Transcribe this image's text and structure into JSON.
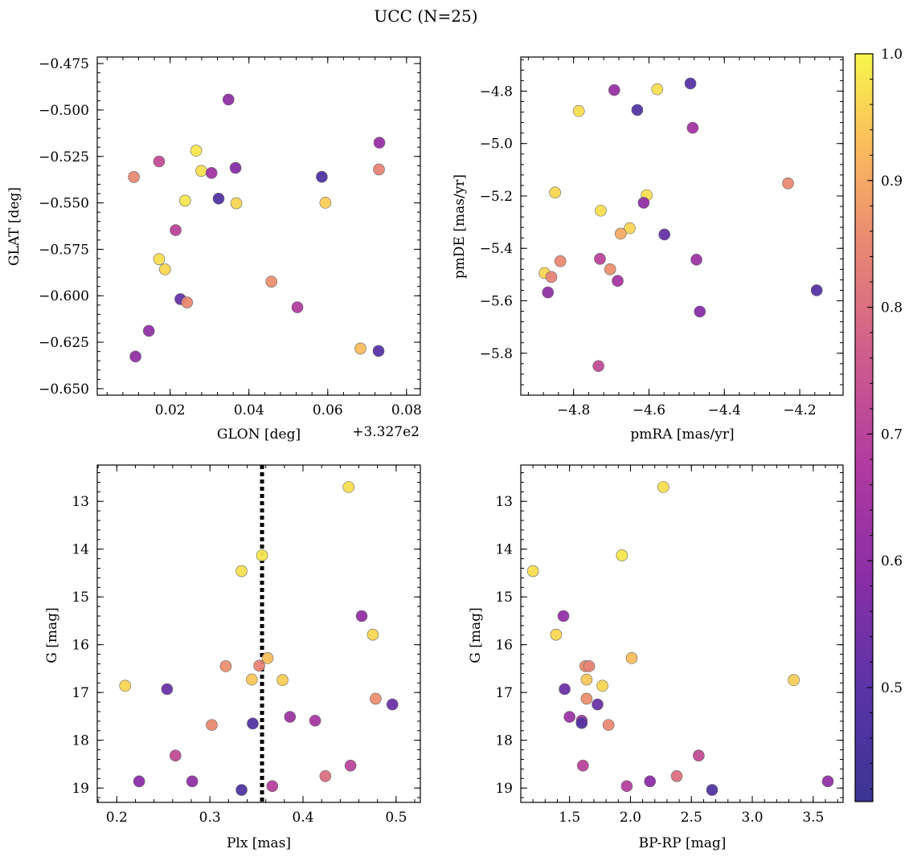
{
  "title": "UCC (N=25)",
  "colors": {
    "colormap": "plasma",
    "point_edge": "#666666",
    "vline": "#000000",
    "background": "#ffffff"
  },
  "colorbar": {
    "range": [
      0.41,
      1.0
    ],
    "ticks": [
      "0.5",
      "0.6",
      "0.7",
      "0.8",
      "0.9",
      "1.0"
    ],
    "tick_values": [
      0.5,
      0.6,
      0.7,
      0.8,
      0.9,
      1.0
    ]
  },
  "chart_data": [
    {
      "type": "scatter",
      "id": "glon-glat",
      "xlabel": "GLON [deg]",
      "ylabel": "GLAT [deg]",
      "offset_text": "+3.327e2",
      "xlim": [
        0.0015,
        0.0835
      ],
      "ylim": [
        -0.6535,
        -0.4715
      ],
      "invert_y": false,
      "xticks": [
        0.02,
        0.04,
        0.06,
        0.08
      ],
      "xtick_labels": [
        "0.02",
        "0.04",
        "0.06",
        "0.08"
      ],
      "xminor": 0.004,
      "yticks": [
        -0.475,
        -0.5,
        -0.525,
        -0.55,
        -0.575,
        -0.6,
        -0.625,
        -0.65
      ],
      "ytick_labels": [
        "−0.475",
        "−0.500",
        "−0.525",
        "−0.550",
        "−0.575",
        "−0.600",
        "−0.625",
        "−0.650"
      ],
      "yminor": 0.005,
      "points": [
        {
          "x": 0.0348,
          "y": -0.4944,
          "c": 0.6
        },
        {
          "x": 0.0266,
          "y": -0.5219,
          "c": 0.98
        },
        {
          "x": 0.0172,
          "y": -0.5277,
          "c": 0.72
        },
        {
          "x": 0.0108,
          "y": -0.5361,
          "c": 0.85
        },
        {
          "x": 0.0279,
          "y": -0.5328,
          "c": 0.97
        },
        {
          "x": 0.0305,
          "y": -0.5339,
          "c": 0.64
        },
        {
          "x": 0.0366,
          "y": -0.5312,
          "c": 0.58
        },
        {
          "x": 0.0323,
          "y": -0.5477,
          "c": 0.48
        },
        {
          "x": 0.0238,
          "y": -0.5488,
          "c": 0.98
        },
        {
          "x": 0.0368,
          "y": -0.5502,
          "c": 0.96
        },
        {
          "x": 0.0585,
          "y": -0.536,
          "c": 0.47
        },
        {
          "x": 0.0594,
          "y": -0.5499,
          "c": 0.95
        },
        {
          "x": 0.0731,
          "y": -0.5176,
          "c": 0.62
        },
        {
          "x": 0.073,
          "y": -0.532,
          "c": 0.84
        },
        {
          "x": 0.0214,
          "y": -0.5647,
          "c": 0.7
        },
        {
          "x": 0.0172,
          "y": -0.5803,
          "c": 0.97
        },
        {
          "x": 0.0187,
          "y": -0.5858,
          "c": 0.96
        },
        {
          "x": 0.0226,
          "y": -0.6018,
          "c": 0.52
        },
        {
          "x": 0.0243,
          "y": -0.6036,
          "c": 0.85
        },
        {
          "x": 0.0457,
          "y": -0.5924,
          "c": 0.86
        },
        {
          "x": 0.0523,
          "y": -0.6062,
          "c": 0.68
        },
        {
          "x": 0.0146,
          "y": -0.6189,
          "c": 0.6
        },
        {
          "x": 0.0112,
          "y": -0.6327,
          "c": 0.61
        },
        {
          "x": 0.0683,
          "y": -0.6284,
          "c": 0.93
        },
        {
          "x": 0.0729,
          "y": -0.6297,
          "c": 0.49
        }
      ]
    },
    {
      "type": "scatter",
      "id": "pmra-pmde",
      "xlabel": "pmRA [mas/yr]",
      "ylabel": "pmDE [mas/yr]",
      "xlim": [
        -4.94,
        -4.085
      ],
      "ylim": [
        -5.96,
        -4.67
      ],
      "invert_y": false,
      "xticks": [
        -4.8,
        -4.6,
        -4.4,
        -4.2
      ],
      "xtick_labels": [
        "−4.8",
        "−4.6",
        "−4.4",
        "−4.2"
      ],
      "xminor": 0.04,
      "yticks": [
        -4.8,
        -5.0,
        -5.2,
        -5.4,
        -5.6,
        -5.8
      ],
      "ytick_labels": [
        "−4.8",
        "−5.0",
        "−5.2",
        "−5.4",
        "−5.6",
        "−5.8"
      ],
      "yminor": 0.04,
      "points": [
        {
          "x": -4.49,
          "y": -4.771,
          "c": 0.49
        },
        {
          "x": -4.578,
          "y": -4.793,
          "c": 0.97
        },
        {
          "x": -4.692,
          "y": -4.796,
          "c": 0.62
        },
        {
          "x": -4.786,
          "y": -4.876,
          "c": 0.97
        },
        {
          "x": -4.631,
          "y": -4.872,
          "c": 0.48
        },
        {
          "x": -4.484,
          "y": -4.94,
          "c": 0.64
        },
        {
          "x": -4.231,
          "y": -5.152,
          "c": 0.85
        },
        {
          "x": -4.849,
          "y": -5.187,
          "c": 0.96
        },
        {
          "x": -4.606,
          "y": -5.197,
          "c": 0.97
        },
        {
          "x": -4.614,
          "y": -5.226,
          "c": 0.6
        },
        {
          "x": -4.728,
          "y": -5.256,
          "c": 0.97
        },
        {
          "x": -4.651,
          "y": -5.323,
          "c": 0.96
        },
        {
          "x": -4.675,
          "y": -5.344,
          "c": 0.9
        },
        {
          "x": -4.559,
          "y": -5.347,
          "c": 0.52
        },
        {
          "x": -4.835,
          "y": -5.449,
          "c": 0.85
        },
        {
          "x": -4.73,
          "y": -5.44,
          "c": 0.7
        },
        {
          "x": -4.474,
          "y": -5.443,
          "c": 0.63
        },
        {
          "x": -4.703,
          "y": -5.48,
          "c": 0.86
        },
        {
          "x": -4.877,
          "y": -5.494,
          "c": 0.96
        },
        {
          "x": -4.859,
          "y": -5.509,
          "c": 0.84
        },
        {
          "x": -4.683,
          "y": -5.524,
          "c": 0.65
        },
        {
          "x": -4.868,
          "y": -5.568,
          "c": 0.6
        },
        {
          "x": -4.155,
          "y": -5.56,
          "c": 0.49
        },
        {
          "x": -4.465,
          "y": -5.641,
          "c": 0.58
        },
        {
          "x": -4.734,
          "y": -5.849,
          "c": 0.72
        }
      ]
    },
    {
      "type": "scatter",
      "id": "plx-g",
      "xlabel": "Plx [mas]",
      "ylabel": "G [mag]",
      "xlim": [
        0.179,
        0.526
      ],
      "ylim": [
        19.3,
        12.24
      ],
      "invert_y": true,
      "vline": 0.356,
      "xticks": [
        0.2,
        0.3,
        0.4,
        0.5
      ],
      "xtick_labels": [
        "0.2",
        "0.3",
        "0.4",
        "0.5"
      ],
      "xminor": 0.02,
      "yticks": [
        13,
        14,
        15,
        16,
        17,
        18,
        19
      ],
      "ytick_labels": [
        "13",
        "14",
        "15",
        "16",
        "17",
        "18",
        "19"
      ],
      "yminor": 0.2,
      "points": [
        {
          "x": 0.449,
          "y": 12.7,
          "c": 0.97
        },
        {
          "x": 0.356,
          "y": 14.13,
          "c": 0.98
        },
        {
          "x": 0.334,
          "y": 14.46,
          "c": 0.97
        },
        {
          "x": 0.463,
          "y": 15.4,
          "c": 0.61
        },
        {
          "x": 0.475,
          "y": 15.79,
          "c": 0.96
        },
        {
          "x": 0.362,
          "y": 16.28,
          "c": 0.93
        },
        {
          "x": 0.317,
          "y": 16.45,
          "c": 0.86
        },
        {
          "x": 0.353,
          "y": 16.44,
          "c": 0.84
        },
        {
          "x": 0.345,
          "y": 16.73,
          "c": 0.94
        },
        {
          "x": 0.378,
          "y": 16.74,
          "c": 0.95
        },
        {
          "x": 0.209,
          "y": 16.86,
          "c": 0.96
        },
        {
          "x": 0.254,
          "y": 16.93,
          "c": 0.53
        },
        {
          "x": 0.478,
          "y": 17.13,
          "c": 0.86
        },
        {
          "x": 0.496,
          "y": 17.25,
          "c": 0.53
        },
        {
          "x": 0.386,
          "y": 17.51,
          "c": 0.63
        },
        {
          "x": 0.413,
          "y": 17.59,
          "c": 0.66
        },
        {
          "x": 0.302,
          "y": 17.68,
          "c": 0.85
        },
        {
          "x": 0.346,
          "y": 17.65,
          "c": 0.48
        },
        {
          "x": 0.263,
          "y": 18.32,
          "c": 0.72
        },
        {
          "x": 0.424,
          "y": 18.75,
          "c": 0.8
        },
        {
          "x": 0.451,
          "y": 18.53,
          "c": 0.7
        },
        {
          "x": 0.224,
          "y": 18.86,
          "c": 0.59
        },
        {
          "x": 0.281,
          "y": 18.86,
          "c": 0.6
        },
        {
          "x": 0.367,
          "y": 18.96,
          "c": 0.69
        },
        {
          "x": 0.334,
          "y": 19.04,
          "c": 0.47
        }
      ]
    },
    {
      "type": "scatter",
      "id": "bprp-g",
      "xlabel": "BP-RP [mag]",
      "ylabel": "G [mag]",
      "xlim": [
        1.1,
        3.745
      ],
      "ylim": [
        19.3,
        12.24
      ],
      "invert_y": true,
      "xticks": [
        1.5,
        2.0,
        2.5,
        3.0,
        3.5
      ],
      "xtick_labels": [
        "1.5",
        "2.0",
        "2.5",
        "3.0",
        "3.5"
      ],
      "xminor": 0.1,
      "yticks": [
        13,
        14,
        15,
        16,
        17,
        18,
        19
      ],
      "ytick_labels": [
        "13",
        "14",
        "15",
        "16",
        "17",
        "18",
        "19"
      ],
      "yminor": 0.2,
      "points": [
        {
          "x": 2.27,
          "y": 12.7,
          "c": 0.97
        },
        {
          "x": 1.93,
          "y": 14.13,
          "c": 0.98
        },
        {
          "x": 1.2,
          "y": 14.46,
          "c": 0.97
        },
        {
          "x": 1.45,
          "y": 15.4,
          "c": 0.61
        },
        {
          "x": 1.39,
          "y": 15.79,
          "c": 0.96
        },
        {
          "x": 2.01,
          "y": 16.28,
          "c": 0.93
        },
        {
          "x": 1.63,
          "y": 16.45,
          "c": 0.86
        },
        {
          "x": 1.66,
          "y": 16.45,
          "c": 0.84
        },
        {
          "x": 1.64,
          "y": 16.73,
          "c": 0.94
        },
        {
          "x": 3.34,
          "y": 16.74,
          "c": 0.95
        },
        {
          "x": 1.77,
          "y": 16.86,
          "c": 0.96
        },
        {
          "x": 1.46,
          "y": 16.93,
          "c": 0.53
        },
        {
          "x": 1.64,
          "y": 17.13,
          "c": 0.86
        },
        {
          "x": 1.73,
          "y": 17.25,
          "c": 0.53
        },
        {
          "x": 1.5,
          "y": 17.51,
          "c": 0.63
        },
        {
          "x": 1.6,
          "y": 17.59,
          "c": 0.66
        },
        {
          "x": 1.82,
          "y": 17.68,
          "c": 0.85
        },
        {
          "x": 1.6,
          "y": 17.64,
          "c": 0.48
        },
        {
          "x": 2.56,
          "y": 18.32,
          "c": 0.72
        },
        {
          "x": 2.38,
          "y": 18.75,
          "c": 0.8
        },
        {
          "x": 1.61,
          "y": 18.53,
          "c": 0.7
        },
        {
          "x": 2.16,
          "y": 18.86,
          "c": 0.59
        },
        {
          "x": 3.62,
          "y": 18.86,
          "c": 0.6
        },
        {
          "x": 1.97,
          "y": 18.96,
          "c": 0.69
        },
        {
          "x": 2.67,
          "y": 19.04,
          "c": 0.47
        }
      ]
    }
  ]
}
